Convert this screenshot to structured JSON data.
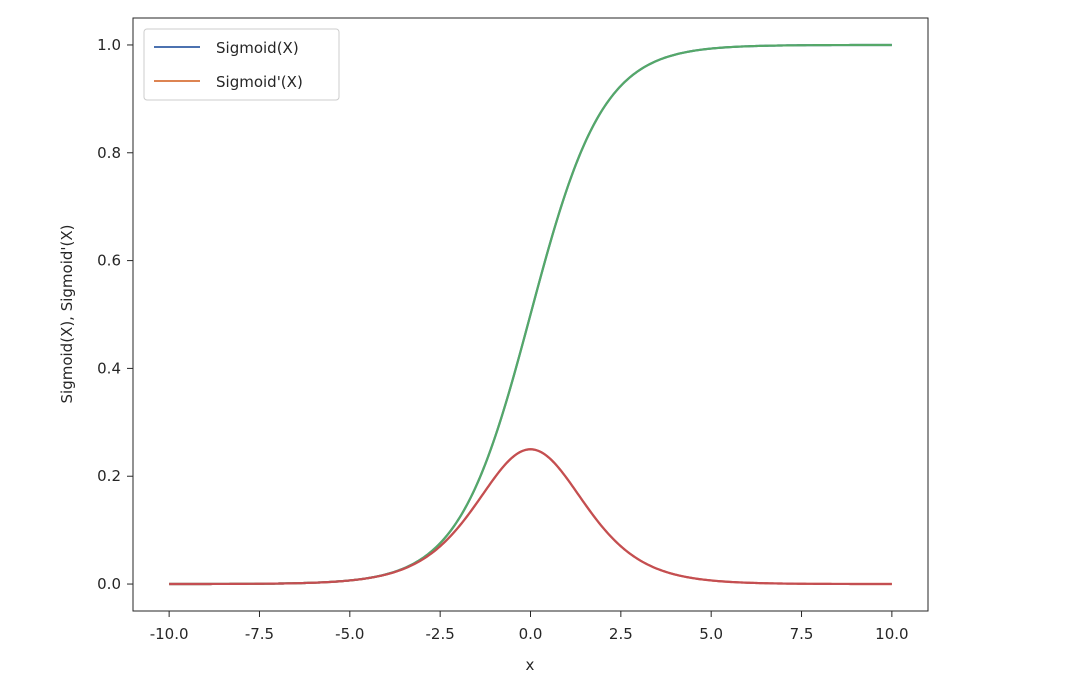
{
  "chart_data": {
    "type": "line",
    "title": "",
    "xlabel": "x",
    "ylabel": "Sigmoid(X), Sigmoid'(X)",
    "xlim": [
      -11.0,
      11.0
    ],
    "ylim": [
      -0.05,
      1.05
    ],
    "grid": false,
    "legend_position": "upper-left",
    "x_ticks": [
      -10.0,
      -7.5,
      -5.0,
      -2.5,
      0.0,
      2.5,
      5.0,
      7.5,
      10.0
    ],
    "x_tick_labels": [
      "-10.0",
      "-7.5",
      "-5.0",
      "-2.5",
      "0.0",
      "2.5",
      "5.0",
      "7.5",
      "10.0"
    ],
    "y_ticks": [
      0.0,
      0.2,
      0.4,
      0.6,
      0.8,
      1.0
    ],
    "y_tick_labels": [
      "0.0",
      "0.2",
      "0.4",
      "0.6",
      "0.8",
      "1.0"
    ],
    "x": [
      -10,
      -9,
      -8,
      -7,
      -6,
      -5,
      -4,
      -3,
      -2.5,
      -2,
      -1.5,
      -1,
      -0.5,
      0,
      0.5,
      1,
      1.5,
      2,
      2.5,
      3,
      4,
      5,
      6,
      7,
      8,
      9,
      10
    ],
    "series": [
      {
        "name": "Sigmoid(X)",
        "color": "#4c72b0",
        "values": [
          0.0,
          0.0001,
          0.0003,
          0.0009,
          0.0025,
          0.0067,
          0.018,
          0.047,
          0.076,
          0.119,
          0.182,
          0.269,
          0.378,
          0.5,
          0.622,
          0.731,
          0.818,
          0.881,
          0.924,
          0.953,
          0.982,
          0.993,
          0.998,
          0.999,
          1.0,
          1.0,
          1.0
        ]
      },
      {
        "name": "Sigmoid'(X)",
        "color": "#dd8452",
        "values": [
          0.0,
          0.0001,
          0.0003,
          0.0009,
          0.0025,
          0.0066,
          0.018,
          0.045,
          0.07,
          0.105,
          0.149,
          0.197,
          0.235,
          0.25,
          0.235,
          0.197,
          0.149,
          0.105,
          0.07,
          0.045,
          0.018,
          0.0066,
          0.0025,
          0.0009,
          0.0003,
          0.0001,
          0.0
        ]
      },
      {
        "name": "",
        "color": "#55a868",
        "values": [
          0.0,
          0.0001,
          0.0003,
          0.0009,
          0.0025,
          0.0067,
          0.018,
          0.047,
          0.076,
          0.119,
          0.182,
          0.269,
          0.378,
          0.5,
          0.622,
          0.731,
          0.818,
          0.881,
          0.924,
          0.953,
          0.982,
          0.993,
          0.998,
          0.999,
          1.0,
          1.0,
          1.0
        ]
      },
      {
        "name": "",
        "color": "#c44e52",
        "values": [
          0.0,
          0.0001,
          0.0003,
          0.0009,
          0.0025,
          0.0066,
          0.018,
          0.045,
          0.07,
          0.105,
          0.149,
          0.197,
          0.235,
          0.25,
          0.235,
          0.197,
          0.149,
          0.105,
          0.07,
          0.045,
          0.018,
          0.0066,
          0.0025,
          0.0009,
          0.0003,
          0.0001,
          0.0
        ]
      }
    ],
    "legend": [
      "Sigmoid(X)",
      "Sigmoid'(X)"
    ]
  }
}
